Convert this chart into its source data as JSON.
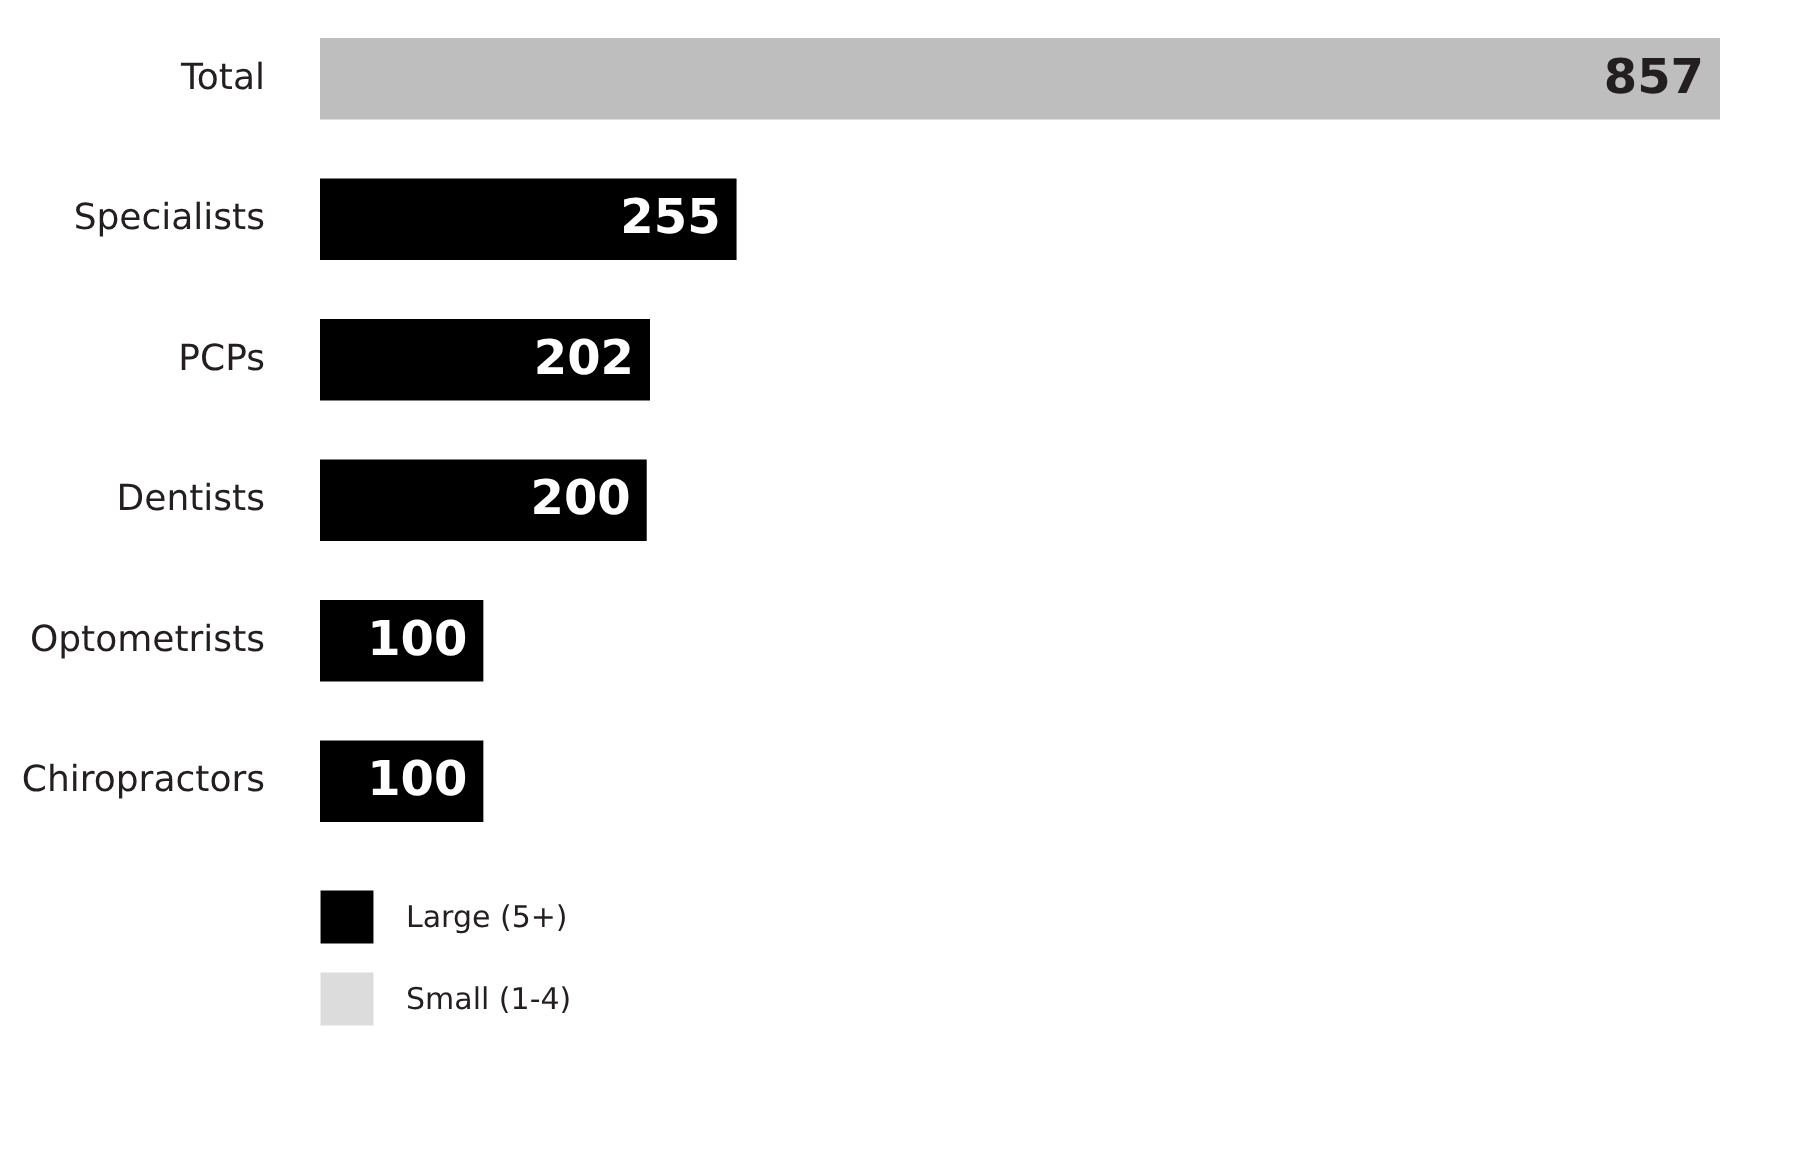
{
  "chart_data": {
    "type": "bar",
    "orientation": "horizontal",
    "categories": [
      "Total",
      "Specialists",
      "PCPs",
      "Dentists",
      "Optometrists",
      "Chiropractors"
    ],
    "series": [
      {
        "color": "#bebebe",
        "values": [
          857,
          null,
          null,
          null,
          null,
          null
        ]
      },
      {
        "name": "Large (5+)",
        "color": "#000000",
        "values": [
          null,
          255,
          202,
          200,
          100,
          100
        ]
      },
      {
        "name": "Small (1-4)",
        "color": "#dcdcdc",
        "values": [
          null,
          null,
          null,
          null,
          null,
          null
        ]
      }
    ],
    "data_labels": true,
    "legend": "bottom left",
    "grid": false
  }
}
